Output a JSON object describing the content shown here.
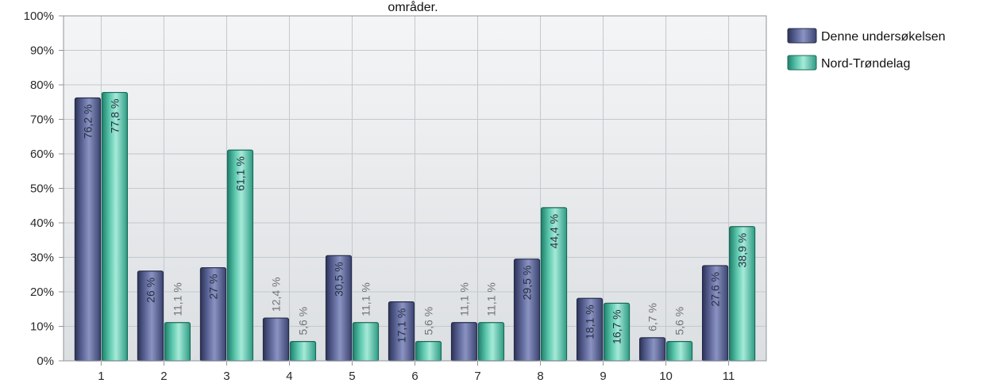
{
  "chart_data": {
    "type": "bar",
    "title": "områder.",
    "categories": [
      "1",
      "2",
      "3",
      "4",
      "5",
      "6",
      "7",
      "8",
      "9",
      "10",
      "11"
    ],
    "ylim": [
      0,
      100
    ],
    "yticks": [
      "0%",
      "10%",
      "20%",
      "30%",
      "40%",
      "50%",
      "60%",
      "70%",
      "80%",
      "90%",
      "100%"
    ],
    "grid": true,
    "legend_position": "right",
    "series": [
      {
        "name": "Denne undersøkelsen",
        "color": "#5a6396",
        "values": [
          76.2,
          26,
          27,
          12.4,
          30.5,
          17.1,
          11.1,
          29.5,
          18.1,
          6.7,
          27.6
        ],
        "labels": [
          "76,2 %",
          "26 %",
          "27 %",
          "12,4 %",
          "30,5 %",
          "17,1 %",
          "11,1 %",
          "29,5 %",
          "18,1 %",
          "6,7 %",
          "27,6 %"
        ]
      },
      {
        "name": "Nord-Trøndelag",
        "color": "#5cc8ad",
        "values": [
          77.8,
          11.1,
          61.1,
          5.6,
          11.1,
          5.6,
          11.1,
          44.4,
          16.7,
          5.6,
          38.9
        ],
        "labels": [
          "77,8 %",
          "11,1 %",
          "61,1 %",
          "5,6 %",
          "11,1 %",
          "5,6 %",
          "11,1 %",
          "44,4 %",
          "16,7 %",
          "5,6 %",
          "38,9 %"
        ]
      }
    ]
  }
}
